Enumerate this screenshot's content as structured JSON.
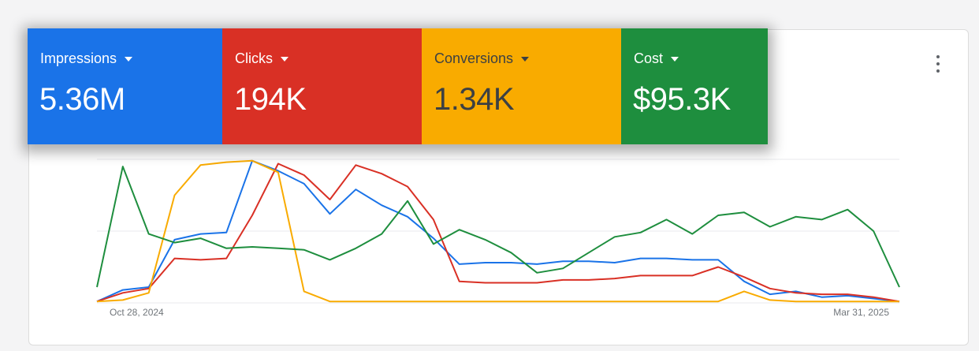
{
  "metrics": [
    {
      "label": "Impressions",
      "value": "5.36M",
      "color": "#1a73e8",
      "text_color": "#ffffff"
    },
    {
      "label": "Clicks",
      "value": "194K",
      "color": "#d93025",
      "text_color": "#ffffff"
    },
    {
      "label": "Conversions",
      "value": "1.34K",
      "color": "#f9ab00",
      "text_color": "#3c4043"
    },
    {
      "label": "Cost",
      "value": "$95.3K",
      "color": "#1e8e3e",
      "text_color": "#ffffff"
    }
  ],
  "menu_icon": "more-vert-icon",
  "chart_data": {
    "type": "line",
    "x_start_label": "Oct 28, 2024",
    "x_end_label": "Mar 31, 2025",
    "y_axis_labels": "hidden",
    "gridlines": 3,
    "series": [
      {
        "name": "Impressions",
        "color": "#1a73e8",
        "values": [
          1,
          9,
          11,
          44,
          48,
          49,
          99,
          92,
          83,
          62,
          79,
          68,
          60,
          45,
          27,
          28,
          28,
          27,
          29,
          29,
          28,
          31,
          31,
          30,
          30,
          15,
          6,
          8,
          4,
          5,
          3,
          1
        ]
      },
      {
        "name": "Clicks",
        "color": "#d93025",
        "values": [
          1,
          7,
          10,
          31,
          30,
          31,
          61,
          97,
          89,
          72,
          96,
          90,
          81,
          58,
          15,
          14,
          14,
          14,
          16,
          16,
          17,
          19,
          19,
          19,
          25,
          18,
          10,
          7,
          6,
          6,
          4,
          1
        ]
      },
      {
        "name": "Conversions",
        "color": "#f9ab00",
        "values": [
          1,
          2,
          7,
          75,
          96,
          98,
          99,
          91,
          8,
          1,
          1,
          1,
          1,
          1,
          1,
          1,
          1,
          1,
          1,
          1,
          1,
          1,
          1,
          1,
          1,
          8,
          2,
          1,
          1,
          1,
          1,
          1
        ]
      },
      {
        "name": "Cost",
        "color": "#1e8e3e",
        "values": [
          11,
          95,
          48,
          42,
          45,
          38,
          39,
          38,
          37,
          30,
          38,
          48,
          71,
          41,
          51,
          44,
          35,
          21,
          24,
          35,
          46,
          49,
          58,
          48,
          61,
          63,
          53,
          60,
          58,
          65,
          50,
          11
        ]
      }
    ]
  }
}
